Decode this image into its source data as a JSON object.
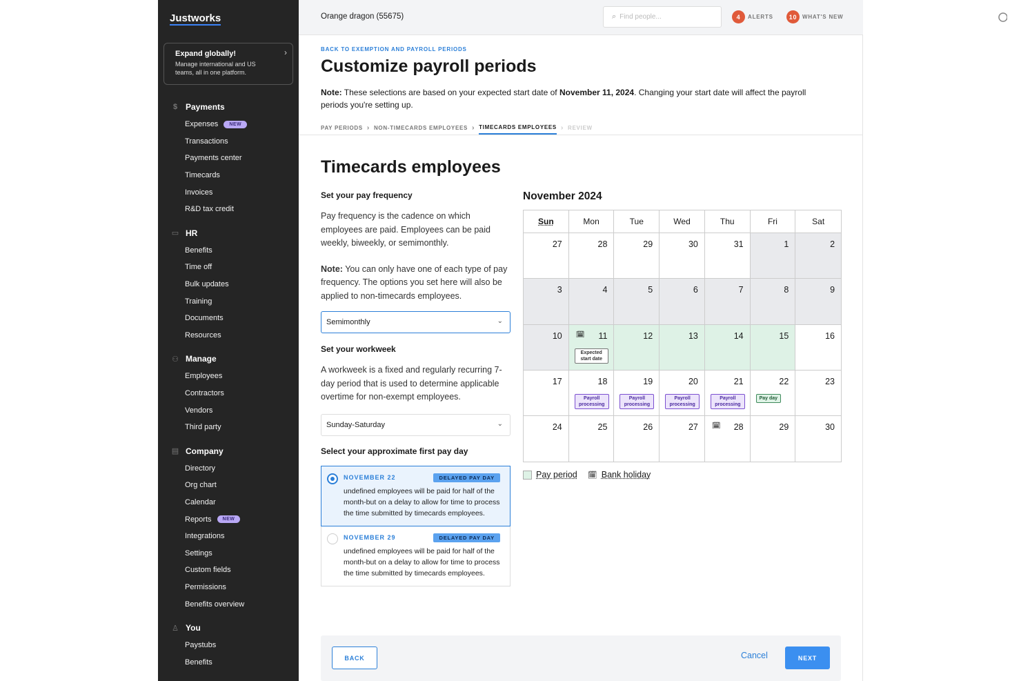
{
  "brand": "Justworks",
  "promo": {
    "title": "Expand globally!",
    "text": "Manage international and US teams, all in one platform."
  },
  "sidebar": {
    "sections": [
      {
        "label": "Payments",
        "icon": "dollar-icon",
        "items": [
          {
            "label": "Expenses",
            "badge": "NEW"
          },
          {
            "label": "Transactions"
          },
          {
            "label": "Payments center"
          },
          {
            "label": "Timecards"
          },
          {
            "label": "Invoices"
          },
          {
            "label": "R&D tax credit"
          }
        ]
      },
      {
        "label": "HR",
        "icon": "clipboard-icon",
        "items": [
          {
            "label": "Benefits"
          },
          {
            "label": "Time off"
          },
          {
            "label": "Bulk updates"
          },
          {
            "label": "Training"
          },
          {
            "label": "Documents"
          },
          {
            "label": "Resources"
          }
        ]
      },
      {
        "label": "Manage",
        "icon": "people-icon",
        "items": [
          {
            "label": "Employees"
          },
          {
            "label": "Contractors"
          },
          {
            "label": "Vendors"
          },
          {
            "label": "Third party"
          }
        ]
      },
      {
        "label": "Company",
        "icon": "building-icon",
        "items": [
          {
            "label": "Directory"
          },
          {
            "label": "Org chart"
          },
          {
            "label": "Calendar"
          },
          {
            "label": "Reports",
            "badge": "NEW"
          },
          {
            "label": "Integrations"
          },
          {
            "label": "Settings"
          },
          {
            "label": "Custom fields"
          },
          {
            "label": "Permissions"
          },
          {
            "label": "Benefits overview"
          }
        ]
      },
      {
        "label": "You",
        "icon": "person-icon",
        "items": [
          {
            "label": "Paystubs"
          },
          {
            "label": "Benefits"
          }
        ]
      }
    ]
  },
  "header": {
    "company": "Orange dragon (55675)",
    "search_placeholder": "Find people...",
    "alerts_count": "4",
    "alerts_label": "ALERTS",
    "whats_new_count": "10",
    "whats_new_label": "WHAT'S NEW"
  },
  "page": {
    "back_link": "BACK TO EXEMPTION AND PAYROLL PERIODS",
    "title": "Customize payroll periods",
    "note_label": "Note:",
    "note_text_1": " These selections are based on your expected start date of ",
    "note_date": "November 11, 2024",
    "note_text_2": ". Changing your start date will affect the payroll periods you're setting up.",
    "steps": [
      "PAY PERIODS",
      "NON-TIMECARDS EMPLOYEES",
      "TIMECARDS EMPLOYEES",
      "REVIEW"
    ],
    "section_title": "Timecards employees"
  },
  "form": {
    "freq_label": "Set your pay frequency",
    "freq_desc": "Pay frequency is the cadence on which employees are paid. Employees can be paid weekly, biweekly, or semimonthly.",
    "freq_note_label": "Note:",
    "freq_note": " You can only have one of each type of pay frequency. The options you set here will also be applied to non-timecards employees.",
    "freq_value": "Semimonthly",
    "workweek_label": "Set your workweek",
    "workweek_desc": "A workweek is a fixed and regularly recurring 7-day period that is used to determine applicable overtime for non-exempt employees.",
    "workweek_value": "Sunday-Saturday",
    "payday_label": "Select your approximate first pay day",
    "payday_options": [
      {
        "date": "NOVEMBER 22",
        "badge": "DELAYED PAY DAY",
        "text": "undefined employees will be paid for half of the month-but on a delay to allow for time to process the time submitted by timecards employees.",
        "selected": true
      },
      {
        "date": "NOVEMBER 29",
        "badge": "DELAYED PAY DAY",
        "text": "undefined employees will be paid for half of the month-but on a delay to allow for time to process the time submitted by timecards employees.",
        "selected": false
      }
    ]
  },
  "calendar": {
    "title": "November 2024",
    "weekdays": [
      "Sun",
      "Mon",
      "Tue",
      "Wed",
      "Thu",
      "Fri",
      "Sat"
    ],
    "weeks": [
      [
        {
          "d": "27",
          "s": "w"
        },
        {
          "d": "28",
          "s": "w"
        },
        {
          "d": "29",
          "s": "w"
        },
        {
          "d": "30",
          "s": "w"
        },
        {
          "d": "31",
          "s": "w"
        },
        {
          "d": "1",
          "s": "g"
        },
        {
          "d": "2",
          "s": "g"
        }
      ],
      [
        {
          "d": "3",
          "s": "g"
        },
        {
          "d": "4",
          "s": "g"
        },
        {
          "d": "5",
          "s": "g"
        },
        {
          "d": "6",
          "s": "g"
        },
        {
          "d": "7",
          "s": "g"
        },
        {
          "d": "8",
          "s": "g"
        },
        {
          "d": "9",
          "s": "g"
        }
      ],
      [
        {
          "d": "10",
          "s": "g"
        },
        {
          "d": "11",
          "s": "p",
          "hol": true,
          "tag": "Expected start date",
          "tt": "esd"
        },
        {
          "d": "12",
          "s": "p"
        },
        {
          "d": "13",
          "s": "p"
        },
        {
          "d": "14",
          "s": "p"
        },
        {
          "d": "15",
          "s": "p"
        },
        {
          "d": "16",
          "s": "w"
        }
      ],
      [
        {
          "d": "17",
          "s": "w"
        },
        {
          "d": "18",
          "s": "w",
          "tag": "Payroll processing",
          "tt": "pp"
        },
        {
          "d": "19",
          "s": "w",
          "tag": "Payroll processing",
          "tt": "pp"
        },
        {
          "d": "20",
          "s": "w",
          "tag": "Payroll processing",
          "tt": "pp"
        },
        {
          "d": "21",
          "s": "w",
          "tag": "Payroll processing",
          "tt": "pp"
        },
        {
          "d": "22",
          "s": "w",
          "tag": "Pay day",
          "tt": "pd"
        },
        {
          "d": "23",
          "s": "w"
        }
      ],
      [
        {
          "d": "24",
          "s": "w"
        },
        {
          "d": "25",
          "s": "w"
        },
        {
          "d": "26",
          "s": "w"
        },
        {
          "d": "27",
          "s": "w"
        },
        {
          "d": "28",
          "s": "w",
          "hol": true
        },
        {
          "d": "29",
          "s": "w"
        },
        {
          "d": "30",
          "s": "w"
        }
      ]
    ],
    "legend_pay_period": "Pay period",
    "legend_bank_holiday": "Bank holiday"
  },
  "footer": {
    "back": "BACK",
    "cancel": "Cancel",
    "next": "NEXT"
  },
  "colors": {
    "accent": "#2b7fd8",
    "alert": "#e05a3a",
    "pay_period": "#def2e6",
    "sidebar": "#252525"
  }
}
